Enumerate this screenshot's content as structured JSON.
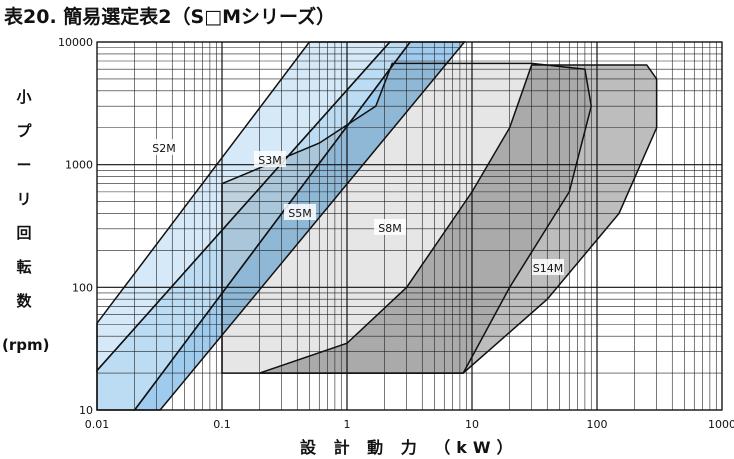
{
  "chart_data": {
    "type": "region",
    "title": "表20. 簡易選定表2（S□Mシリーズ）",
    "x_label": "設 計 動 力 （kW）",
    "y_label": "小プーリ回転数",
    "y_unit": "(rpm)",
    "xscale": "log",
    "yscale": "log",
    "grid": true,
    "xlim": [
      0.01,
      1000
    ],
    "xticks": [
      0.01,
      0.1,
      1,
      10,
      100,
      1000
    ],
    "ylim": [
      10,
      10000
    ],
    "yticks": [
      10,
      100,
      1000,
      10000
    ],
    "series": [
      {
        "name": "S2M",
        "color": "#d6e9f8",
        "x": [
          0.01,
          0.01,
          0.5,
          2.2
        ],
        "y": [
          21,
          51,
          10000,
          10000
        ]
      },
      {
        "name": "S3M",
        "color": "#bcdcf3",
        "x": [
          0.01,
          0.01,
          2.2,
          3.2,
          0.02
        ],
        "y": [
          10,
          21,
          10000,
          10000,
          10
        ]
      },
      {
        "name": "S5M",
        "color": "#9fcbee",
        "x": [
          0.02,
          3.2,
          8.7,
          0.032
        ],
        "y": [
          10,
          10000,
          10000,
          10
        ]
      },
      {
        "name": "S8M",
        "color": "#e6e6e6",
        "x": [
          0.1,
          0.1,
          0.6,
          1.7,
          2.3,
          30,
          80,
          90,
          60,
          20,
          8.5
        ],
        "y": [
          20,
          700,
          1500,
          3000,
          6700,
          6700,
          6000,
          3000,
          600,
          100,
          20
        ]
      },
      {
        "name": "S14M",
        "color": "#bdbdbd",
        "x": [
          0.2,
          1,
          3,
          10,
          20,
          30,
          250,
          300,
          300,
          150,
          40,
          8.5
        ],
        "y": [
          20,
          35,
          100,
          600,
          2000,
          6500,
          6500,
          5000,
          2000,
          400,
          80,
          20
        ]
      }
    ]
  }
}
